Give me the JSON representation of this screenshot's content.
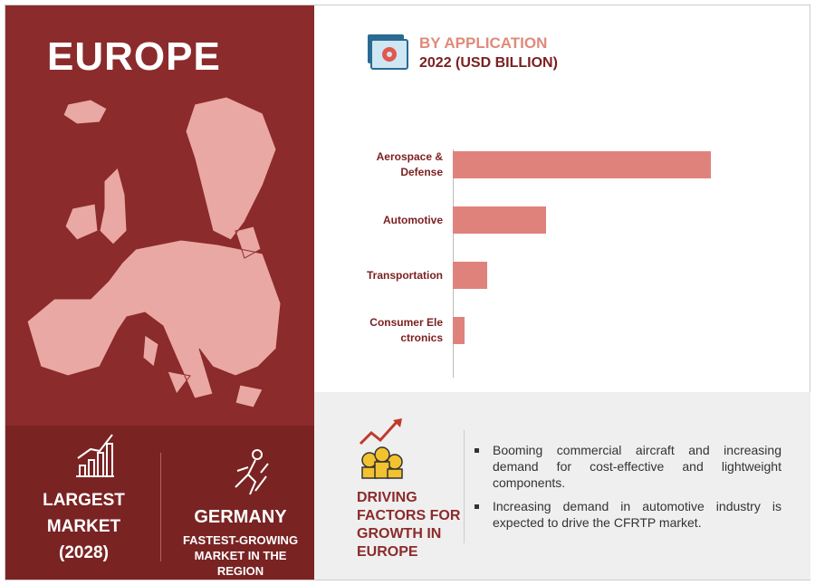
{
  "region": "EUROPE",
  "chart_data": {
    "type": "bar",
    "orientation": "horizontal",
    "title": "BY APPLICATION",
    "subtitle": "2022 (USD BILLION)",
    "categories": [
      "Aerospace & Defense",
      "Automotive",
      "Transportation",
      "Consumer Electronics"
    ],
    "values": [
      2.85,
      1.03,
      0.38,
      0.13
    ],
    "color": "#e0827c",
    "xlim": [
      0,
      3.7
    ]
  },
  "largest": {
    "title": "LARGEST MARKET (2028)"
  },
  "fastest": {
    "title": "GERMANY",
    "subtitle": "FASTEST-GROWING MARKET IN THE REGION"
  },
  "drivers": {
    "title": "DRIVING FACTORS FOR GROWTH IN EUROPE",
    "items": [
      "Booming commercial aircraft and increasing demand for cost-effective and lightweight components.",
      "Increasing demand in automotive industry is expected to drive the CFRTP market."
    ]
  }
}
